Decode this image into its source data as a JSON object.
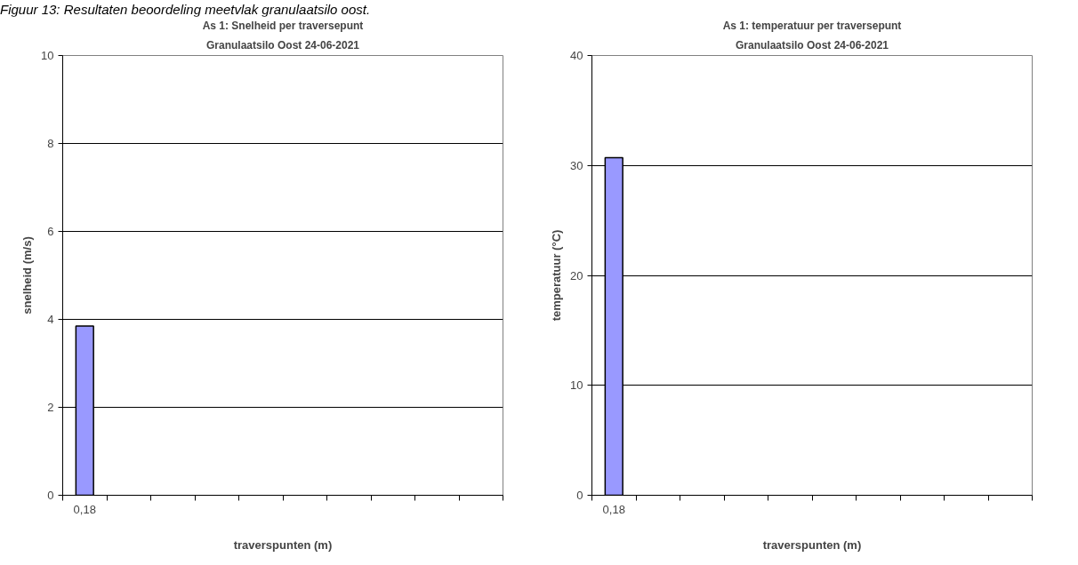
{
  "chart_data": [
    {
      "type": "bar",
      "title": "As 1: Snelheid per traversepunt",
      "subtitle": "Granulaatsilo Oost 24-06-2021",
      "xlabel": "traverspunten (m)",
      "ylabel": "snelheid (m/s)",
      "categories": [
        "0,18",
        null,
        null,
        null,
        null,
        null,
        null,
        null,
        null,
        null
      ],
      "series": [
        {
          "color": "#9999ff",
          "values": [
            3.85,
            null,
            null,
            null,
            null,
            null,
            null,
            null,
            null,
            null
          ]
        }
      ],
      "ylim": [
        0,
        10
      ],
      "yticks": [
        0,
        2,
        4,
        6,
        8,
        10
      ],
      "grid": "y",
      "annotations": [
        "Figuur 13: Resultaten beoordeling meetvlak granulaatsilo oost."
      ]
    },
    {
      "type": "bar",
      "title": "As 1: temperatuur per traversepunt",
      "subtitle": "Granulaatsilo Oost 24-06-2021",
      "xlabel": "traverspunten (m)",
      "ylabel": "temperatuur (°C)",
      "categories": [
        "0,18",
        null,
        null,
        null,
        null,
        null,
        null,
        null,
        null,
        null
      ],
      "series": [
        {
          "color": "#9999ff",
          "values": [
            30.7,
            null,
            null,
            null,
            null,
            null,
            null,
            null,
            null,
            null
          ]
        }
      ],
      "ylim": [
        0,
        40
      ],
      "yticks": [
        0,
        10,
        20,
        30,
        40
      ],
      "grid": "y"
    }
  ]
}
